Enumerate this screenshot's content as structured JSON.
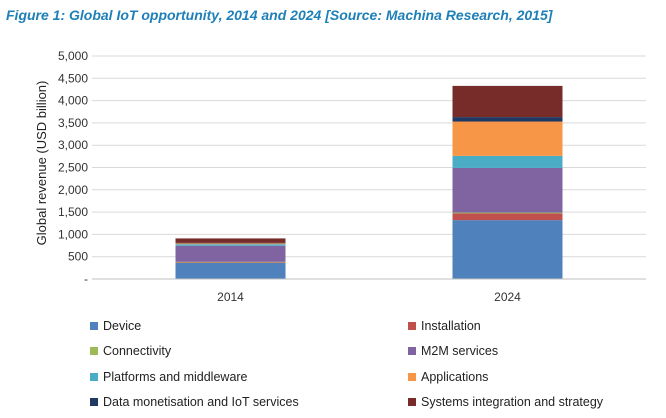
{
  "figure": {
    "title": "Figure 1: Global IoT opportunity, 2014 and 2024 [Source: Machina Research, 2015]",
    "title_color": "#1f80b8"
  },
  "chart_data": {
    "type": "bar",
    "stacked": true,
    "categories": [
      "2014",
      "2024"
    ],
    "ylabel": "Global revenue (USD billion)",
    "ylim": [
      0,
      5000
    ],
    "yticks": [
      0,
      500,
      1000,
      1500,
      2000,
      2500,
      3000,
      3500,
      4000,
      4500,
      5000
    ],
    "ytick_labels": [
      "-",
      "500",
      "1,000",
      "1,500",
      "2,000",
      "2,500",
      "3,000",
      "3,500",
      "4,000",
      "4,500",
      "5,000"
    ],
    "grid": true,
    "legend_position": "bottom",
    "series": [
      {
        "name": "Device",
        "color": "#4f81bd",
        "values": [
          360,
          1320
        ]
      },
      {
        "name": "Installation",
        "color": "#c0504d",
        "values": [
          15,
          150
        ]
      },
      {
        "name": "Connectivity",
        "color": "#9bbb59",
        "values": [
          10,
          20
        ]
      },
      {
        "name": "M2M services",
        "color": "#8064a2",
        "values": [
          360,
          1000
        ]
      },
      {
        "name": "Platforms and middleware",
        "color": "#4bacc6",
        "values": [
          35,
          270
        ]
      },
      {
        "name": "Applications",
        "color": "#f79646",
        "values": [
          20,
          770
        ]
      },
      {
        "name": "Data monetisation and IoT services",
        "color": "#1f3864",
        "values": [
          10,
          100
        ]
      },
      {
        "name": "Systems integration and strategy",
        "color": "#772c2a",
        "values": [
          100,
          700
        ]
      }
    ]
  }
}
